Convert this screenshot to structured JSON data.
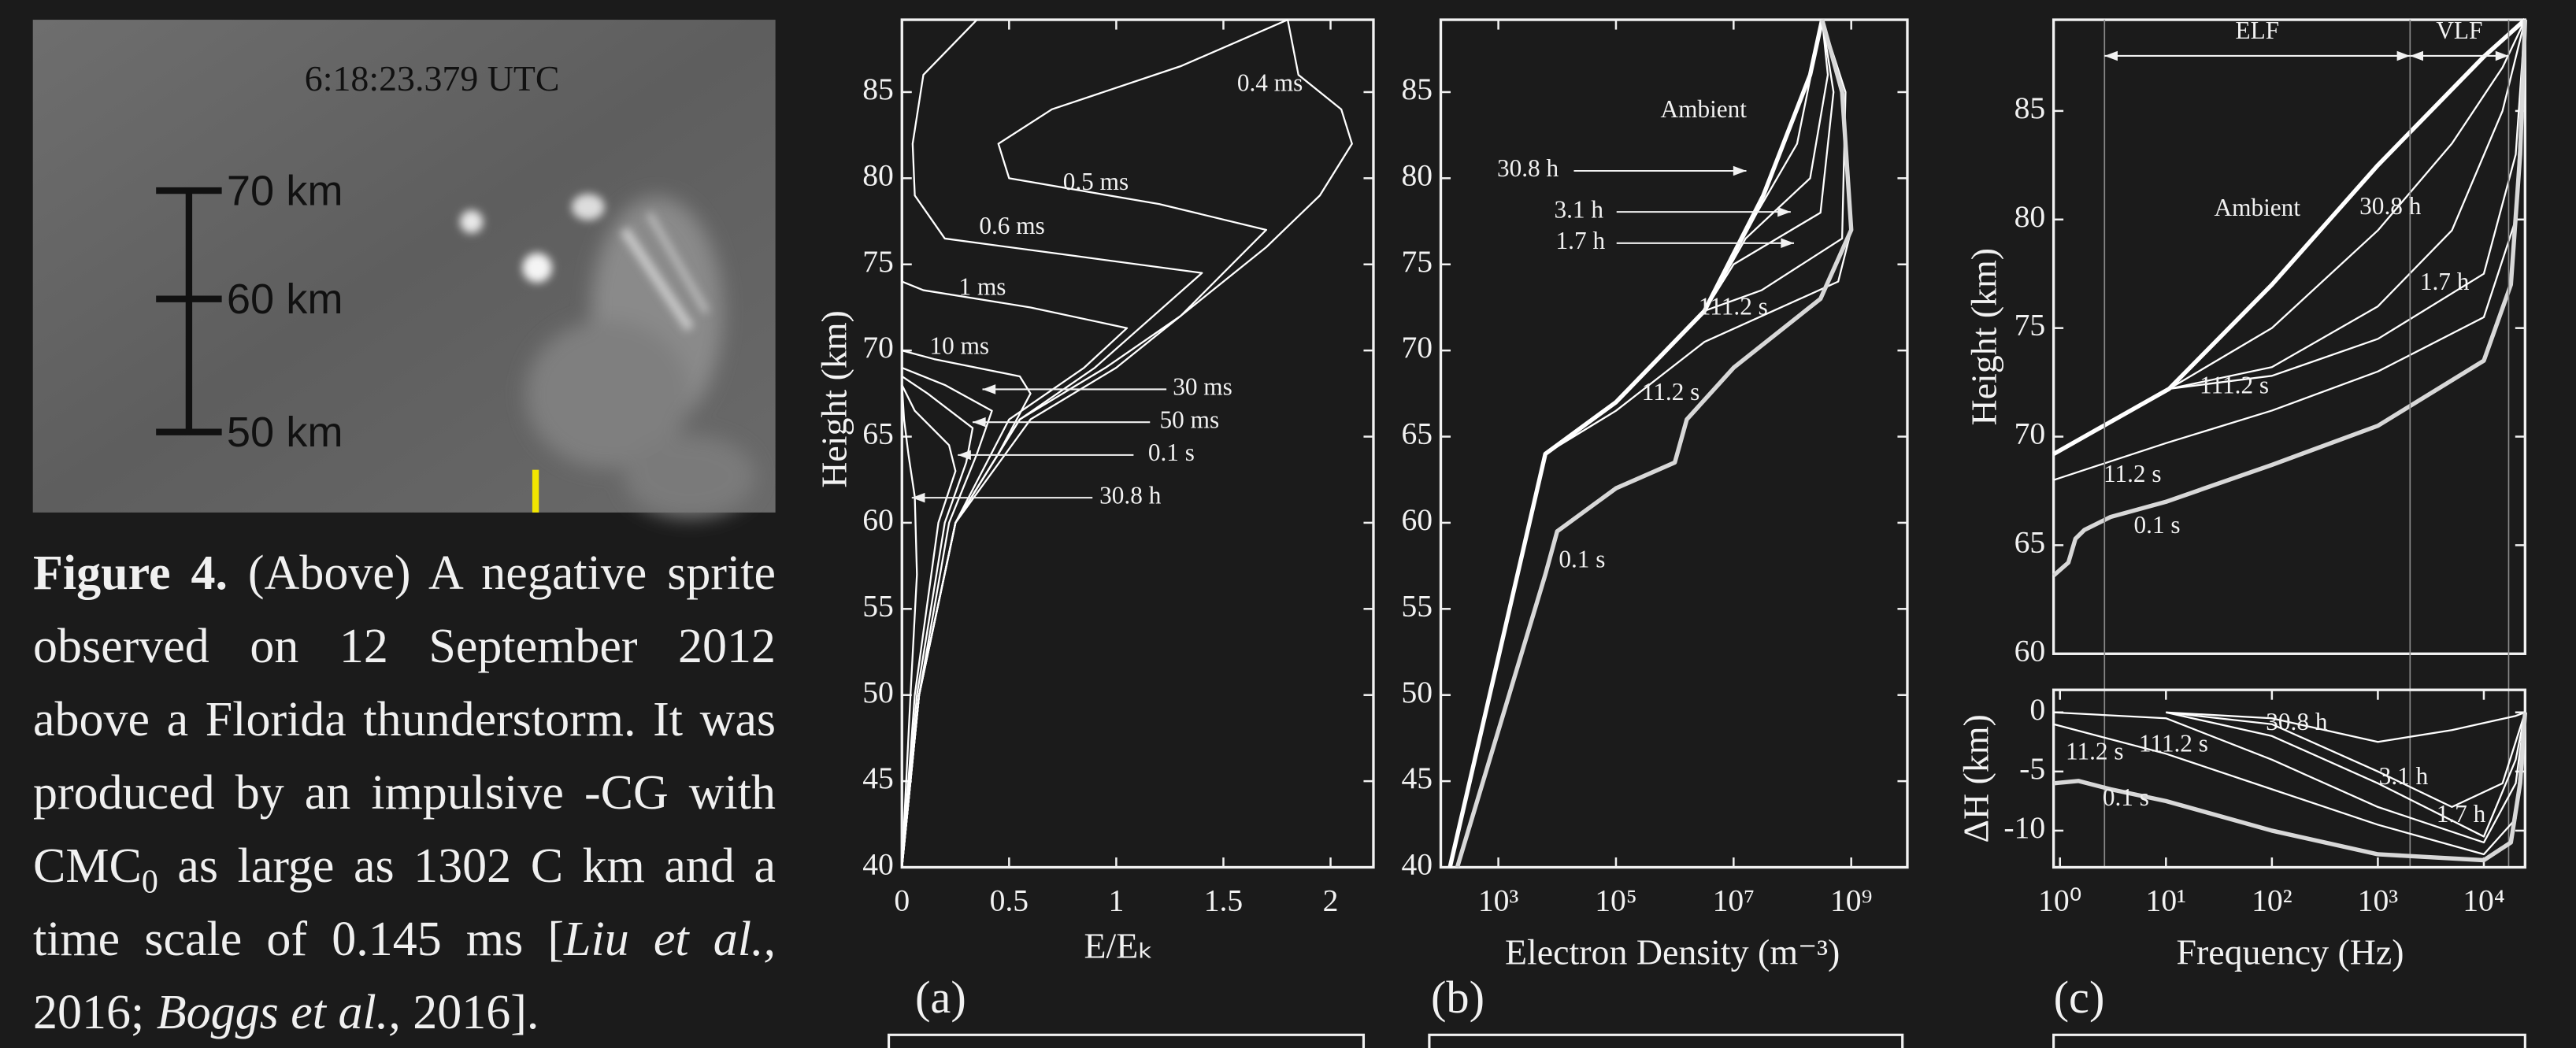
{
  "photo": {
    "timestamp": "6:18:23.379 UTC",
    "scale_labels": [
      "70 km",
      "60 km",
      "50 km"
    ]
  },
  "caption": {
    "label": "Figure 4.",
    "text1": " (Above) A negative sprite observed on 12 September 2012 above a Florida thunderstorm. It was produced by an impulsive -CG with CMC",
    "sub": "0",
    "text2": " as large as 1302 C  km and a time scale of 0.145 ms [",
    "ref1": "Liu et al.,",
    "text3": " 2016; ",
    "ref2": "Boggs et al.,",
    "text4": " 2016]."
  },
  "panels": [
    "(a)",
    "(b)",
    "(c)"
  ],
  "chart_data": [
    {
      "type": "line",
      "xlabel": "E/Eₖ",
      "ylabel": "Height (km)",
      "xlim": [
        0,
        2.2
      ],
      "ylim": [
        40,
        89.2
      ],
      "xticks": [
        0,
        0.5,
        1,
        1.5,
        2
      ],
      "yticks": [
        40,
        45,
        50,
        55,
        60,
        65,
        70,
        75,
        80,
        85
      ],
      "series": [
        {
          "name": "0.4 ms",
          "color": "#ffffff",
          "x": [
            0,
            0.08,
            0.25,
            0.6,
            1.0,
            1.3,
            1.7,
            1.95,
            2.1,
            2.05,
            1.85,
            1.8
          ],
          "values": [
            40,
            50,
            60,
            66,
            69,
            72,
            76,
            79,
            82,
            84,
            86,
            89.2
          ]
        },
        {
          "name": "0.5 ms",
          "color": "#ffffff",
          "x": [
            0,
            0.08,
            0.25,
            0.55,
            0.95,
            1.3,
            1.7,
            1.2,
            0.5,
            0.45,
            0.7,
            1.3,
            1.8
          ],
          "values": [
            40,
            50,
            60,
            66,
            69,
            72,
            77,
            78.5,
            80,
            82,
            84,
            86.5,
            89.2
          ]
        },
        {
          "name": "0.6 ms",
          "color": "#ffffff",
          "x": [
            0,
            0.08,
            0.25,
            0.55,
            0.9,
            1.4,
            0.8,
            0.2,
            0.06,
            0.05,
            0.1,
            0.35
          ],
          "values": [
            40,
            50,
            60,
            66,
            69,
            74.5,
            75.5,
            76.5,
            79,
            82,
            86,
            89.2
          ]
        },
        {
          "name": "1 ms",
          "color": "#ffffff",
          "x": [
            0,
            0.08,
            0.25,
            0.5,
            0.85,
            1.05,
            0.6,
            0.1,
            0,
            0
          ],
          "values": [
            40,
            50,
            60,
            66,
            69,
            71.3,
            72.5,
            73.5,
            74,
            75
          ]
        },
        {
          "name": "10 ms",
          "color": "#ffffff",
          "x": [
            0,
            0.08,
            0.25,
            0.45,
            0.6,
            0.55,
            0.15,
            0
          ],
          "values": [
            40,
            50,
            60,
            64,
            67.5,
            68.5,
            69.5,
            70
          ]
        },
        {
          "name": "30 ms",
          "color": "#ffffff",
          "x": [
            0,
            0.08,
            0.22,
            0.35,
            0.42,
            0.2,
            0
          ],
          "values": [
            40,
            50,
            60,
            64,
            66.5,
            68,
            69
          ]
        },
        {
          "name": "50 ms",
          "color": "#ffffff",
          "x": [
            0,
            0.07,
            0.2,
            0.3,
            0.33,
            0.12,
            0
          ],
          "values": [
            40,
            50,
            60,
            63.5,
            65.5,
            67.5,
            68.5
          ]
        },
        {
          "name": "0.1 s",
          "color": "#ffffff",
          "x": [
            0,
            0.06,
            0.17,
            0.25,
            0.22,
            0.06,
            0
          ],
          "values": [
            40,
            50,
            60,
            63,
            64.5,
            66.5,
            68
          ]
        },
        {
          "name": "30.8 h",
          "color": "#ffffff",
          "x": [
            0,
            0.04,
            0.07,
            0.06,
            0.03,
            0.01,
            0
          ],
          "values": [
            40,
            50,
            57,
            61.5,
            64,
            66,
            68
          ]
        }
      ]
    },
    {
      "type": "line",
      "xlabel": "Electron Density (m⁻³)",
      "xscale": "log",
      "xlim": [
        105,
        9000000000
      ],
      "ylim": [
        40,
        89.2
      ],
      "xticks": [
        {
          "value": 1000,
          "label": "10³"
        },
        {
          "value": 100000,
          "label": "10⁵"
        },
        {
          "value": 10000000,
          "label": "10⁷"
        },
        {
          "value": 1000000000,
          "label": "10⁹"
        }
      ],
      "yticks": [
        40,
        45,
        50,
        55,
        60,
        65,
        70,
        75,
        80,
        85
      ],
      "series": [
        {
          "name": "Ambient",
          "color": "#ffffff",
          "line_width": 2.6,
          "x": [
            150,
            6300,
            100000,
            3200000,
            32000000,
            200000000,
            320000000
          ],
          "values": [
            40,
            64,
            67,
            72.3,
            79,
            86,
            89.2
          ]
        },
        {
          "name": "30.8 h",
          "color": "#ffffff",
          "x": [
            150,
            6300,
            100000,
            3200000,
            25000000,
            120000000,
            320000000
          ],
          "values": [
            40,
            64,
            67,
            72.3,
            78,
            82,
            89.2
          ]
        },
        {
          "name": "3.1 h",
          "color": "#ffffff",
          "x": [
            150,
            6300,
            100000,
            3200000,
            16000000,
            200000000,
            400000000,
            320000000
          ],
          "values": [
            40,
            64,
            67,
            72.3,
            76.5,
            80,
            86,
            89.2
          ]
        },
        {
          "name": "1.7 h",
          "color": "#ffffff",
          "x": [
            150,
            6300,
            100000,
            3200000,
            10000000,
            300000000,
            500000000,
            320000000
          ],
          "values": [
            40,
            64,
            67,
            72.3,
            75,
            78,
            85,
            89.2
          ]
        },
        {
          "name": "111.2 s",
          "color": "#ffffff",
          "x": [
            150,
            6300,
            100000,
            3200000,
            30000000,
            700000000,
            800000000,
            320000000
          ],
          "values": [
            40,
            64,
            67,
            72.3,
            73.5,
            76.5,
            85,
            89.2
          ]
        },
        {
          "name": "11.2 s",
          "color": "#ffffff",
          "x": [
            150,
            6300,
            100000,
            3200000,
            600000000,
            1000000000,
            700000000,
            320000000
          ],
          "values": [
            40,
            64,
            66.5,
            70.5,
            74,
            77,
            85,
            89.2
          ]
        },
        {
          "name": "0.1 s",
          "color": "#d8d8d8",
          "line_width": 2.6,
          "x": [
            200,
            6300,
            10000,
            100000,
            1000000,
            1600000,
            10000000,
            300000000,
            1000000000,
            700000000,
            320000000
          ],
          "values": [
            40,
            57,
            59.5,
            62,
            63.5,
            66,
            69,
            73,
            77,
            85,
            89.2
          ]
        }
      ]
    },
    {
      "type": "line",
      "ylabel": "Height (km)",
      "xscale": "log",
      "xlim": [
        0.87,
        24500
      ],
      "ylim": [
        60,
        89.2
      ],
      "yticks": [
        60,
        65,
        70,
        75,
        80,
        85
      ],
      "band_labels": [
        "ELF",
        "VLF"
      ],
      "series": [
        {
          "name": "Ambient",
          "color": "#ffffff",
          "line_width": 2.6,
          "x": [
            0.87,
            10.7,
            100,
            1000,
            10000,
            24500
          ],
          "values": [
            69.2,
            72.2,
            77,
            82.5,
            87.5,
            89.2
          ]
        },
        {
          "name": "30.8 h",
          "color": "#ffffff",
          "x": [
            10.7,
            100,
            1000,
            5000,
            15000,
            24500
          ],
          "values": [
            72.2,
            75,
            79.5,
            83.5,
            87,
            89.2
          ]
        },
        {
          "name": "1.7 h",
          "color": "#ffffff",
          "x": [
            10.7,
            100,
            1000,
            5000,
            15000,
            24500
          ],
          "values": [
            72.2,
            73.2,
            76,
            79.5,
            85,
            89.2
          ]
        },
        {
          "name": "111.2 s",
          "color": "#ffffff",
          "x": [
            10.7,
            100,
            1000,
            10000,
            20000,
            24500
          ],
          "values": [
            72.2,
            72.8,
            74.5,
            77.5,
            83,
            89.2
          ]
        },
        {
          "name": "11.2 s",
          "color": "#ffffff",
          "x": [
            0.87,
            10,
            100,
            1000,
            10000,
            20000,
            24500
          ],
          "values": [
            68,
            69.7,
            71.2,
            73,
            75.5,
            80,
            89.2
          ]
        },
        {
          "name": "0.1 s",
          "color": "#d8d8d8",
          "line_width": 2.6,
          "x": [
            0.87,
            1.2,
            1.4,
            1.7,
            3,
            10,
            100,
            1000,
            10000,
            18000,
            22000,
            24500
          ],
          "values": [
            63.6,
            64.2,
            65.3,
            65.7,
            66.3,
            67,
            68.7,
            70.5,
            73.5,
            77,
            83,
            89.2
          ]
        }
      ]
    },
    {
      "type": "line",
      "xlabel": "Frequency (Hz)",
      "ylabel": "ΔH (km)",
      "xscale": "log",
      "xlim": [
        0.87,
        24500
      ],
      "ylim": [
        -13.1,
        1.9
      ],
      "xticks": [
        {
          "value": 1,
          "label": "10⁰"
        },
        {
          "value": 10,
          "label": "10¹"
        },
        {
          "value": 100,
          "label": "10²"
        },
        {
          "value": 1000,
          "label": "10³"
        },
        {
          "value": 10000,
          "label": "10⁴"
        }
      ],
      "yticks": [
        0,
        -5,
        -10
      ],
      "series": [
        {
          "name": "30.8 h",
          "color": "#ffffff",
          "x": [
            10,
            100,
            1000,
            5000,
            20000,
            24500
          ],
          "values": [
            0,
            -0.5,
            -2.5,
            -1.5,
            -0.3,
            0
          ]
        },
        {
          "name": "3.1 h",
          "color": "#ffffff",
          "x": [
            10,
            100,
            1000,
            5000,
            15000,
            24500
          ],
          "values": [
            0,
            -1,
            -5,
            -8,
            -6,
            0
          ]
        },
        {
          "name": "1.7 h",
          "color": "#ffffff",
          "x": [
            10,
            100,
            1000,
            10000,
            20000,
            24500
          ],
          "values": [
            0,
            -2,
            -6,
            -10.5,
            -4,
            0
          ]
        },
        {
          "name": "11.2 s",
          "color": "#ffffff",
          "x": [
            0.87,
            10,
            100,
            1000,
            10000,
            20000,
            24500
          ],
          "values": [
            -1,
            -3.5,
            -6.5,
            -9.5,
            -12,
            -9,
            0
          ]
        },
        {
          "name": "111.2 s",
          "color": "#ffffff",
          "x": [
            0.87,
            10,
            100,
            1000,
            10000,
            20000,
            24500
          ],
          "values": [
            0,
            -0.5,
            -4,
            -8,
            -11,
            -6,
            0
          ]
        },
        {
          "name": "0.1 s",
          "color": "#d8d8d8",
          "line_width": 2.6,
          "x": [
            0.87,
            1.5,
            3,
            10,
            100,
            1000,
            10000,
            18000,
            22000,
            24500
          ],
          "values": [
            -6,
            -5.8,
            -6.5,
            -7.5,
            -10,
            -12,
            -12.5,
            -11,
            -6,
            0
          ]
        }
      ]
    }
  ]
}
